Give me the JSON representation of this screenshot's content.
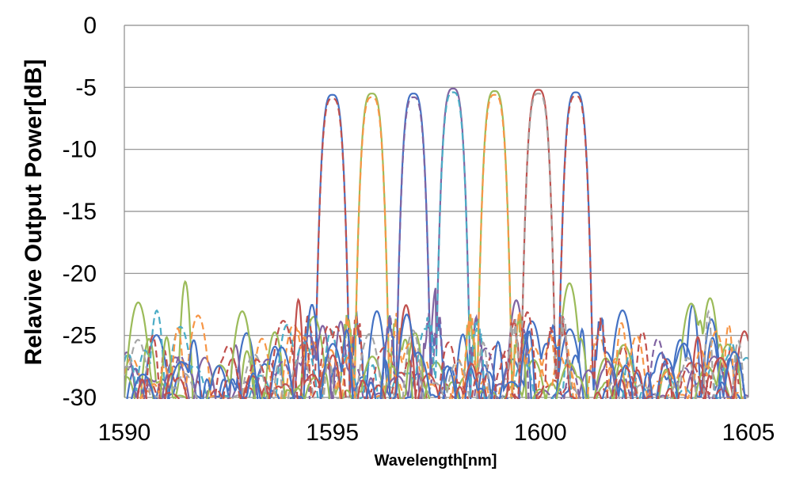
{
  "chart_data": {
    "type": "line",
    "title": "",
    "xlabel": "Wavelength[nm]",
    "ylabel": "Relavive Output Power[dB]",
    "xlim": [
      1590,
      1605
    ],
    "ylim": [
      -30,
      0
    ],
    "xticks": [
      "1590",
      "1595",
      "1600",
      "1605"
    ],
    "yticks": [
      "0",
      "-5",
      "-10",
      "-15",
      "-20",
      "-25",
      "-30"
    ],
    "grid": "horizontal",
    "legend": "none",
    "channels": [
      {
        "center": 1595.0,
        "peak": -5.6,
        "solid_color": "#4472C4",
        "dash_color": "#C0504D"
      },
      {
        "center": 1595.95,
        "peak": -5.5,
        "solid_color": "#9BBB59",
        "dash_color": "#F79646"
      },
      {
        "center": 1596.95,
        "peak": -5.5,
        "solid_color": "#4472C4",
        "dash_color": "#8064A2"
      },
      {
        "center": 1597.9,
        "peak": -5.1,
        "solid_color": "#8064A2",
        "dash_color": "#4BACC6"
      },
      {
        "center": 1598.9,
        "peak": -5.3,
        "solid_color": "#9BBB59",
        "dash_color": "#F79646"
      },
      {
        "center": 1599.95,
        "peak": -5.2,
        "solid_color": "#C0504D",
        "dash_color": "#A6A6A6"
      },
      {
        "center": 1600.85,
        "peak": -5.4,
        "solid_color": "#4472C4",
        "dash_color": "#C0504D"
      }
    ],
    "noise_floor": [
      -30,
      -22.5
    ],
    "colors": {
      "grid": "#8c8c8c",
      "axis": "#8c8c8c",
      "palette": [
        "#4472C4",
        "#C0504D",
        "#9BBB59",
        "#8064A2",
        "#4BACC6",
        "#F79646",
        "#A6A6A6"
      ]
    }
  }
}
